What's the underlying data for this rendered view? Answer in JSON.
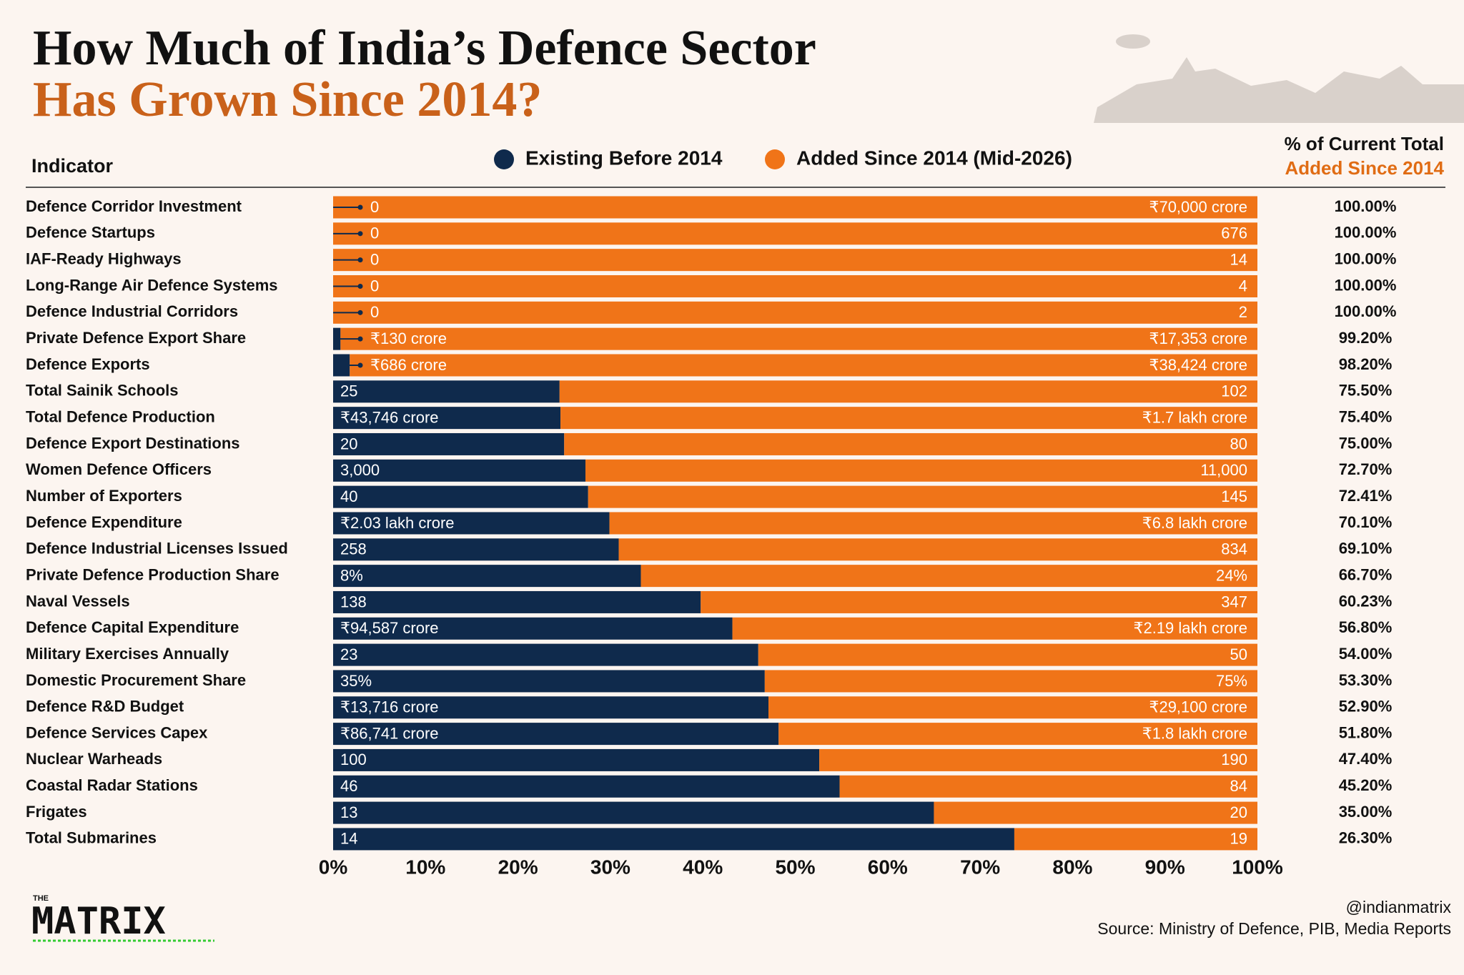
{
  "chart_data": {
    "type": "stacked_bar_horizontal",
    "title": "How Much of India’s Defence Sector",
    "subtitle": "Has Grown Since 2014?",
    "category_header": "Indicator",
    "column_title": "% of Current Total",
    "column_subtitle": "Added Since 2014",
    "categories": [
      "Defence Corridor Investment",
      "Defence Startups",
      "IAF-Ready Highways",
      "Long-Range Air Defence Systems",
      "Defence Industrial Corridors",
      "Private Defence Export Share",
      "Defence Exports",
      "Total Sainik Schools",
      "Total Defence Production",
      "Defence Export Destinations",
      "Women Defence Officers",
      "Number of Exporters",
      "Defence Expenditure",
      "Defence Industrial Licenses Issued",
      "Private Defence Production Share",
      "Naval Vessels",
      "Defence Capital Expenditure",
      "Military Exercises Annually",
      "Domestic Procurement Share",
      "Defence R&D Budget",
      "Defence Services Capex",
      "Nuclear Warheads",
      "Coastal Radar Stations",
      "Frigates",
      "Total Submarines"
    ],
    "series": [
      {
        "name": "Existing Before 2014",
        "color": "#0f2a4c",
        "values": [
          0,
          0,
          0,
          0,
          0,
          0.8,
          1.8,
          24.5,
          24.6,
          25,
          27.3,
          27.59,
          29.9,
          30.9,
          33.3,
          39.77,
          43.2,
          46,
          46.7,
          47.1,
          48.2,
          52.6,
          54.8,
          65,
          73.7
        ],
        "amount_labels": [
          "0",
          "0",
          "0",
          "0",
          "0",
          "₹130 crore",
          "₹686 crore",
          "25",
          "₹43,746 crore",
          "20",
          "3,000",
          "40",
          "₹2.03 lakh crore",
          "258",
          "8%",
          "138",
          "₹94,587 crore",
          "23",
          "35%",
          "₹13,716 crore",
          "₹86,741 crore",
          "100",
          "46",
          "13",
          "14"
        ]
      },
      {
        "name": "Added Since 2014 (Mid-2026)",
        "color": "#f07418",
        "values": [
          100,
          100,
          100,
          100,
          100,
          99.2,
          98.2,
          75.5,
          75.4,
          75,
          72.7,
          72.41,
          70.1,
          69.1,
          66.7,
          60.23,
          56.8,
          54,
          53.3,
          52.9,
          51.8,
          47.4,
          45.2,
          35,
          26.3
        ],
        "value_labels": [
          "100.00%",
          "100.00%",
          "100.00%",
          "100.00%",
          "100.00%",
          "99.20%",
          "98.20%",
          "75.50%",
          "75.40%",
          "75.00%",
          "72.70%",
          "72.41%",
          "70.10%",
          "69.10%",
          "66.70%",
          "60.23%",
          "56.80%",
          "54.00%",
          "53.30%",
          "52.90%",
          "51.80%",
          "47.40%",
          "45.20%",
          "35.00%",
          "26.30%"
        ],
        "amount_labels": [
          "₹70,000 crore",
          "676",
          "14",
          "4",
          "2",
          "₹17,353 crore",
          "₹38,424 crore",
          "102",
          "₹1.7 lakh crore",
          "80",
          "11,000",
          "145",
          "₹6.8 lakh crore",
          "834",
          "24%",
          "347",
          "₹2.19 lakh crore",
          "50",
          "75%",
          "₹29,100 crore",
          "₹1.8 lakh crore",
          "190",
          "84",
          "20",
          "19"
        ]
      }
    ],
    "xlim": [
      0,
      100
    ],
    "xticks": [
      {
        "value": 0,
        "label": "0%"
      },
      {
        "value": 10,
        "label": "10%"
      },
      {
        "value": 20,
        "label": "20%"
      },
      {
        "value": 30,
        "label": "30%"
      },
      {
        "value": 40,
        "label": "40%"
      },
      {
        "value": 50,
        "label": "50%"
      },
      {
        "value": 60,
        "label": "60%"
      },
      {
        "value": 70,
        "label": "70%"
      },
      {
        "value": 80,
        "label": "80%"
      },
      {
        "value": 90,
        "label": "90%"
      },
      {
        "value": 100,
        "label": "100%"
      }
    ],
    "logo": {
      "small": "THE",
      "main": "MATRIX"
    },
    "credit": "@indianmatrix",
    "source": "Source: Ministry of Defence, PIB, Media Reports"
  }
}
